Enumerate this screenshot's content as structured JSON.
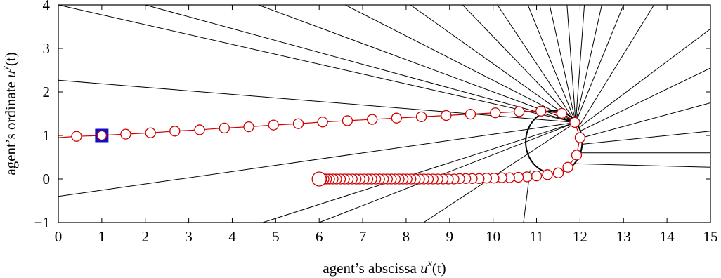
{
  "chart_data": {
    "type": "line",
    "title": "",
    "xlabel": {
      "prefix": "agent’s abscissa ",
      "var": "u",
      "sup": "x",
      "suffix": "(t)"
    },
    "ylabel": {
      "prefix": "agent’s ordinate ",
      "var": "u",
      "sup": "y",
      "suffix": "(t)"
    },
    "xlim": [
      0,
      15
    ],
    "ylim": [
      -1,
      4
    ],
    "xticks": [
      0,
      1,
      2,
      3,
      4,
      5,
      6,
      7,
      8,
      9,
      10,
      11,
      12,
      13,
      14,
      15
    ],
    "yticks": [
      -1,
      0,
      1,
      2,
      3,
      4
    ],
    "ytick_labels": [
      "−1",
      "0",
      "1",
      "2",
      "3",
      "4"
    ],
    "grid": false,
    "colors": {
      "trajectory": "#d00000",
      "start_marker": "#1010c8",
      "rays": "#000000"
    },
    "start_marker": {
      "x": 1.0,
      "y": 1.0,
      "shape": "square"
    },
    "rays": [
      [
        [
          0,
          4
        ],
        [
          11.9,
          1.3
        ]
      ],
      [
        [
          0,
          2.27
        ],
        [
          11.9,
          1.3
        ]
      ],
      [
        [
          0,
          -0.4
        ],
        [
          11.9,
          1.3
        ]
      ],
      [
        [
          4.7,
          -1
        ],
        [
          11.9,
          1.3
        ]
      ],
      [
        [
          6.0,
          -1
        ],
        [
          11.9,
          1.3
        ]
      ],
      [
        [
          8.4,
          -1
        ],
        [
          11.9,
          1.3
        ]
      ],
      [
        [
          2.0,
          4
        ],
        [
          11.9,
          1.3
        ]
      ],
      [
        [
          4.6,
          4
        ],
        [
          11.9,
          1.3
        ]
      ],
      [
        [
          6.6,
          4
        ],
        [
          11.9,
          1.3
        ]
      ],
      [
        [
          8.1,
          4
        ],
        [
          11.9,
          1.3
        ]
      ],
      [
        [
          9.3,
          4
        ],
        [
          11.9,
          1.3
        ]
      ],
      [
        [
          10.1,
          4
        ],
        [
          11.9,
          1.3
        ]
      ],
      [
        [
          10.8,
          4
        ],
        [
          11.9,
          1.3
        ]
      ],
      [
        [
          11.3,
          4
        ],
        [
          11.9,
          1.3
        ]
      ],
      [
        [
          11.7,
          4
        ],
        [
          11.9,
          1.3
        ]
      ],
      [
        [
          12.1,
          4
        ],
        [
          11.9,
          1.3
        ]
      ],
      [
        [
          12.5,
          4
        ],
        [
          11.9,
          1.3
        ]
      ],
      [
        [
          13.0,
          4
        ],
        [
          11.9,
          1.3
        ]
      ],
      [
        [
          13.7,
          4
        ],
        [
          12.0,
          1.25
        ]
      ],
      [
        [
          15,
          3.45
        ],
        [
          12.0,
          1.2
        ]
      ],
      [
        [
          15,
          2.55
        ],
        [
          12.0,
          1.1
        ]
      ],
      [
        [
          15,
          1.75
        ],
        [
          12.05,
          0.95
        ]
      ],
      [
        [
          15,
          1.1
        ],
        [
          12.05,
          0.8
        ]
      ],
      [
        [
          15,
          0.6
        ],
        [
          12.0,
          0.6
        ]
      ],
      [
        [
          15,
          0.27
        ],
        [
          11.9,
          0.35
        ]
      ],
      [
        [
          10.7,
          -1
        ],
        [
          10.85,
          0.2
        ]
      ]
    ],
    "circle": {
      "cx": 11.4,
      "cy": 0.85,
      "rx": 0.65,
      "ry": 0.72
    },
    "trajectory": {
      "x": [
        0.0,
        0.42,
        0.98,
        1.55,
        2.12,
        2.68,
        3.25,
        3.82,
        4.38,
        4.95,
        5.52,
        6.08,
        6.65,
        7.22,
        7.78,
        8.35,
        8.92,
        9.48,
        10.05,
        10.6,
        11.1,
        11.58,
        11.88,
        12.0,
        11.92,
        11.72,
        11.5,
        11.25,
        11.0,
        10.78,
        10.58,
        10.38,
        10.2,
        10.02,
        9.85,
        9.68,
        9.52,
        9.37,
        9.23,
        9.1,
        8.97,
        8.85,
        8.73,
        8.62,
        8.51,
        8.41,
        8.31,
        8.21,
        8.11,
        8.02,
        7.93,
        7.84,
        7.75,
        7.66,
        7.57,
        7.48,
        7.39,
        7.3,
        7.21,
        7.12,
        7.03,
        6.94,
        6.85,
        6.76,
        6.67,
        6.58,
        6.49,
        6.4,
        6.32,
        6.24,
        6.17,
        6.11,
        6.06,
        6.03,
        6.0
      ],
      "y": [
        0.95,
        0.98,
        1.0,
        1.03,
        1.06,
        1.1,
        1.13,
        1.17,
        1.2,
        1.24,
        1.27,
        1.31,
        1.34,
        1.37,
        1.4,
        1.43,
        1.46,
        1.49,
        1.52,
        1.55,
        1.56,
        1.51,
        1.3,
        0.95,
        0.55,
        0.27,
        0.14,
        0.1,
        0.07,
        0.05,
        0.04,
        0.03,
        0.03,
        0.02,
        0.02,
        0.01,
        0.01,
        0.01,
        0.01,
        0.0,
        0.0,
        0.0,
        0.0,
        0.0,
        0.0,
        0.0,
        0.0,
        0.0,
        0.0,
        0.0,
        0.0,
        0.0,
        0.0,
        0.0,
        0.0,
        0.0,
        0.0,
        0.0,
        0.0,
        0.0,
        0.0,
        0.0,
        0.0,
        0.0,
        0.0,
        0.0,
        0.0,
        0.0,
        0.0,
        0.0,
        0.0,
        0.0,
        0.0,
        0.0,
        0.0
      ],
      "marker_every_from": 1
    },
    "end_point": {
      "x": 6.0,
      "y": 0.0
    }
  }
}
